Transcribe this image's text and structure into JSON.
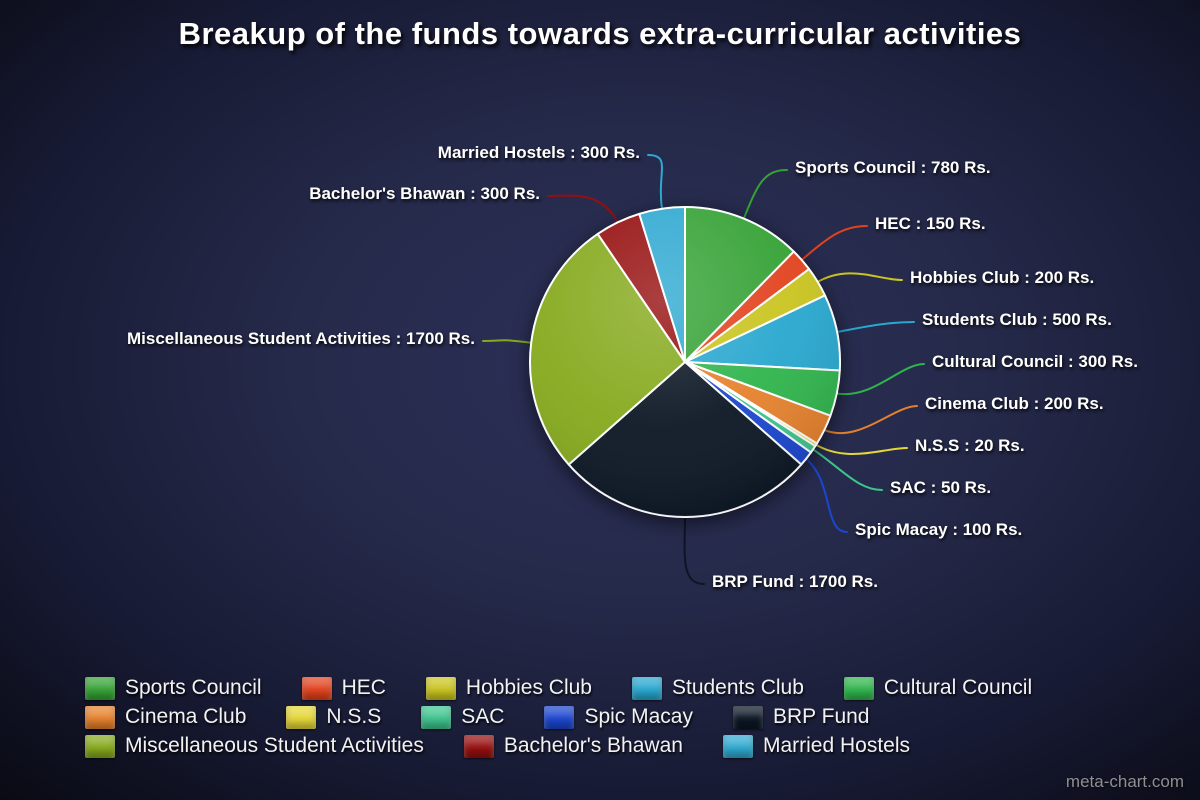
{
  "page": {
    "title": "Breakup of the funds towards extra-curricular activities",
    "watermark": "meta-chart.com"
  },
  "chart_data": {
    "type": "pie",
    "title": "Breakup of the funds towards extra-curricular activities",
    "unit": "Rs.",
    "total": 6300,
    "label_format": "{name} : {value} Rs.",
    "legend_position": "bottom",
    "start_angle_deg": -90,
    "direction": "clockwise",
    "series": [
      {
        "name": "Sports Council",
        "value": 780,
        "color": "#35a235"
      },
      {
        "name": "HEC",
        "value": 150,
        "color": "#e2421e"
      },
      {
        "name": "Hobbies Club",
        "value": 200,
        "color": "#c9c41f"
      },
      {
        "name": "Students Club",
        "value": 500,
        "color": "#28a7cf"
      },
      {
        "name": "Cultural Council",
        "value": 300,
        "color": "#2fb44c"
      },
      {
        "name": "Cinema Club",
        "value": 200,
        "color": "#e5812c"
      },
      {
        "name": "N.S.S",
        "value": 20,
        "color": "#e5d638"
      },
      {
        "name": "SAC",
        "value": 50,
        "color": "#3ec48e"
      },
      {
        "name": "Spic Macay",
        "value": 100,
        "color": "#1b46cf"
      },
      {
        "name": "BRP Fund",
        "value": 1700,
        "color": "#0b1624"
      },
      {
        "name": "Miscellaneous Student Activities",
        "value": 1700,
        "color": "#85a91c"
      },
      {
        "name": "Bachelor's Bhawan",
        "value": 300,
        "color": "#960f0f"
      },
      {
        "name": "Married Hostels",
        "value": 300,
        "color": "#2fa9d1"
      }
    ]
  }
}
